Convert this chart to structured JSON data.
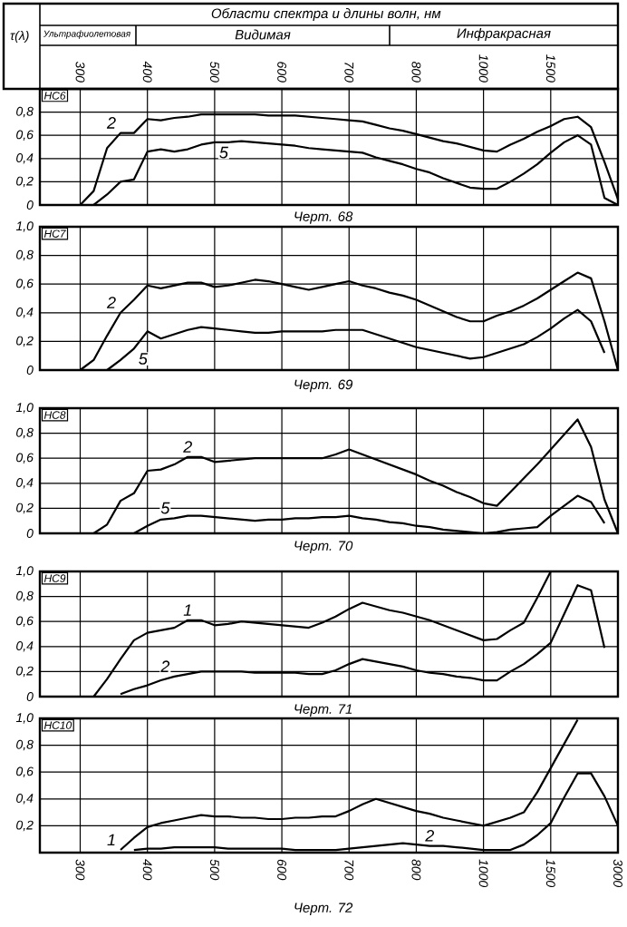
{
  "chart_data": [
    {
      "type": "line",
      "title": "НС6",
      "ylabel": "τ(λ)",
      "x2label": "Области спектра и длины волн, нм",
      "annotations": [
        "Ультрафиолетовая",
        "Видимая",
        "Инфракрасная",
        "Черт. 68"
      ],
      "categories": [
        null,
        null,
        null,
        "300",
        null,
        null,
        null,
        null,
        "400",
        null,
        null,
        null,
        null,
        "500",
        null,
        null,
        null,
        null,
        "600",
        null,
        null,
        null,
        null,
        "700",
        null,
        null,
        null,
        null,
        "800",
        null,
        null,
        null,
        null,
        "1000",
        null,
        null,
        null,
        null,
        "1500",
        null,
        null,
        null,
        null,
        null
      ],
      "ylim": [
        0,
        1
      ],
      "yticks": [
        {
          "value": 0,
          "label": "0"
        },
        {
          "value": 0.2,
          "label": "0,2"
        },
        {
          "value": 0.4,
          "label": "0,4"
        },
        {
          "value": 0.6,
          "label": "0,6"
        },
        {
          "value": 0.8,
          "label": "0,8"
        }
      ],
      "grid": true,
      "series": [
        {
          "name": "2",
          "color": "#000000",
          "values": [
            null,
            null,
            null,
            0,
            0.12,
            0.49,
            0.62,
            0.62,
            0.74,
            0.73,
            0.75,
            0.76,
            0.78,
            0.78,
            0.78,
            0.78,
            0.78,
            0.77,
            0.77,
            0.77,
            0.76,
            0.75,
            0.74,
            0.73,
            0.72,
            0.69,
            0.66,
            0.64,
            0.61,
            0.58,
            0.55,
            0.53,
            0.5,
            0.47,
            0.46,
            0.52,
            0.57,
            0.63,
            0.68,
            0.74,
            0.76,
            0.67,
            0.37,
            0.05
          ]
        },
        {
          "name": "5",
          "color": "#000000",
          "values": [
            null,
            null,
            null,
            null,
            0,
            0.09,
            0.2,
            0.22,
            0.46,
            0.48,
            0.46,
            0.48,
            0.52,
            0.54,
            0.54,
            0.55,
            0.54,
            0.53,
            0.52,
            0.51,
            0.49,
            0.48,
            0.47,
            0.46,
            0.45,
            0.41,
            0.38,
            0.35,
            0.31,
            0.28,
            0.23,
            0.19,
            0.15,
            0.14,
            0.14,
            0.2,
            0.27,
            0.35,
            0.45,
            0.54,
            0.6,
            0.52,
            0.06,
            0
          ]
        }
      ]
    },
    {
      "type": "line",
      "title": "НС7",
      "annotations": [
        "Черт. 69"
      ],
      "categories": [
        null,
        null,
        null,
        "300",
        null,
        null,
        null,
        null,
        "400",
        null,
        null,
        null,
        null,
        "500",
        null,
        null,
        null,
        null,
        "600",
        null,
        null,
        null,
        null,
        "700",
        null,
        null,
        null,
        null,
        "800",
        null,
        null,
        null,
        null,
        "1000",
        null,
        null,
        null,
        null,
        "1500",
        null,
        null,
        null,
        null,
        "3000"
      ],
      "ylim": [
        0,
        1
      ],
      "yticks": [
        {
          "value": 0,
          "label": "0"
        },
        {
          "value": 0.2,
          "label": "0,2"
        },
        {
          "value": 0.4,
          "label": "0,4"
        },
        {
          "value": 0.6,
          "label": "0,6"
        },
        {
          "value": 0.8,
          "label": "0,8"
        },
        {
          "value": 1,
          "label": "1,0"
        }
      ],
      "grid": true,
      "tick_labels": "y",
      "series": [
        {
          "name": "2",
          "color": "#000000",
          "values": [
            null,
            null,
            null,
            0,
            0.07,
            0.24,
            0.4,
            0.49,
            0.59,
            0.57,
            0.59,
            0.61,
            0.61,
            0.58,
            0.59,
            0.61,
            0.63,
            0.62,
            0.6,
            0.58,
            0.56,
            0.58,
            0.6,
            0.62,
            0.59,
            0.57,
            0.54,
            0.52,
            0.49,
            0.45,
            0.41,
            0.37,
            0.34,
            0.34,
            0.38,
            0.41,
            0.45,
            0.5,
            0.56,
            0.62,
            0.68,
            0.64,
            0.34,
            0
          ]
        },
        {
          "name": "5",
          "color": "#000000",
          "values": [
            null,
            null,
            null,
            null,
            null,
            0,
            0.07,
            0.15,
            0.27,
            0.22,
            0.25,
            0.28,
            0.3,
            0.29,
            0.28,
            0.27,
            0.26,
            0.26,
            0.27,
            0.27,
            0.27,
            0.27,
            0.28,
            0.28,
            0.28,
            0.25,
            0.22,
            0.19,
            0.16,
            0.14,
            0.12,
            0.1,
            0.08,
            0.09,
            0.12,
            0.15,
            0.18,
            0.23,
            0.29,
            0.36,
            0.42,
            0.34,
            0.12,
            null
          ]
        }
      ]
    },
    {
      "type": "line",
      "title": "НС8",
      "annotations": [
        "Черт. 70"
      ],
      "categories": [
        null,
        null,
        null,
        "300",
        null,
        null,
        null,
        null,
        "400",
        null,
        null,
        null,
        null,
        "500",
        null,
        null,
        null,
        null,
        "600",
        null,
        null,
        null,
        null,
        "700",
        null,
        null,
        null,
        null,
        "800",
        null,
        null,
        null,
        null,
        "1000",
        null,
        null,
        null,
        null,
        "1500",
        null,
        null,
        null,
        null,
        "3000"
      ],
      "ylim": [
        0,
        1
      ],
      "yticks": [
        {
          "value": 0,
          "label": "0"
        },
        {
          "value": 0.2,
          "label": "0,2"
        },
        {
          "value": 0.4,
          "label": "0,4"
        },
        {
          "value": 0.6,
          "label": "0,6"
        },
        {
          "value": 0.8,
          "label": "0,8"
        },
        {
          "value": 1,
          "label": "1,0"
        }
      ],
      "grid": true,
      "tick_labels": "y",
      "series": [
        {
          "name": "2",
          "color": "#000000",
          "values": [
            null,
            null,
            null,
            null,
            0,
            0.07,
            0.26,
            0.32,
            0.5,
            0.51,
            0.55,
            0.61,
            0.61,
            0.57,
            0.58,
            0.59,
            0.6,
            0.6,
            0.6,
            0.6,
            0.6,
            0.6,
            0.63,
            0.67,
            0.63,
            0.59,
            0.55,
            0.51,
            0.47,
            0.42,
            0.38,
            0.33,
            0.29,
            0.24,
            0.22,
            0.33,
            0.44,
            0.55,
            0.67,
            0.79,
            0.91,
            0.69,
            0.27,
            0
          ]
        },
        {
          "name": "5",
          "color": "#000000",
          "values": [
            null,
            null,
            null,
            null,
            null,
            null,
            null,
            0,
            0.06,
            0.11,
            0.12,
            0.14,
            0.14,
            0.13,
            0.12,
            0.11,
            0.1,
            0.11,
            0.11,
            0.12,
            0.12,
            0.13,
            0.13,
            0.14,
            0.12,
            0.11,
            0.09,
            0.08,
            0.06,
            0.05,
            0.03,
            0.02,
            0.01,
            0,
            0.01,
            0.03,
            0.04,
            0.05,
            0.14,
            0.22,
            0.3,
            0.25,
            0.08,
            null
          ]
        }
      ]
    },
    {
      "type": "line",
      "title": "НС9",
      "annotations": [
        "Черт. 71"
      ],
      "categories": [
        null,
        null,
        null,
        "300",
        null,
        null,
        null,
        null,
        "400",
        null,
        null,
        null,
        null,
        "500",
        null,
        null,
        null,
        null,
        "600",
        null,
        null,
        null,
        null,
        "700",
        null,
        null,
        null,
        null,
        "800",
        null,
        null,
        null,
        null,
        "1000",
        null,
        null,
        null,
        null,
        "1500",
        null,
        null,
        null,
        null,
        "3000"
      ],
      "ylim": [
        0,
        1
      ],
      "yticks": [
        {
          "value": 0,
          "label": "0"
        },
        {
          "value": 0.2,
          "label": "0,2"
        },
        {
          "value": 0.4,
          "label": "0,4"
        },
        {
          "value": 0.6,
          "label": "0,6"
        },
        {
          "value": 0.8,
          "label": "0,8"
        },
        {
          "value": 1,
          "label": "1,0"
        }
      ],
      "grid": true,
      "tick_labels": "y",
      "series": [
        {
          "name": "1",
          "color": "#000000",
          "values": [
            null,
            null,
            null,
            null,
            0,
            0.14,
            0.3,
            0.45,
            0.51,
            0.53,
            0.55,
            0.61,
            0.61,
            0.57,
            0.58,
            0.6,
            0.59,
            0.58,
            0.57,
            0.56,
            0.55,
            0.59,
            0.64,
            0.7,
            0.75,
            0.72,
            0.69,
            0.67,
            0.64,
            0.61,
            0.57,
            0.53,
            0.49,
            0.45,
            0.46,
            0.53,
            0.59,
            0.79,
            1,
            null,
            null,
            null,
            null,
            null
          ]
        },
        {
          "name": "2",
          "color": "#000000",
          "values": [
            null,
            null,
            null,
            null,
            null,
            null,
            0.02,
            0.06,
            0.09,
            0.13,
            0.16,
            0.18,
            0.2,
            0.2,
            0.2,
            0.2,
            0.19,
            0.19,
            0.19,
            0.19,
            0.18,
            0.18,
            0.21,
            0.26,
            0.3,
            0.28,
            0.26,
            0.24,
            0.21,
            0.19,
            0.18,
            0.16,
            0.15,
            0.13,
            0.13,
            0.2,
            0.26,
            0.34,
            0.43,
            0.66,
            0.89,
            0.85,
            0.39,
            null
          ]
        }
      ]
    },
    {
      "type": "line",
      "title": "НС10",
      "annotations": [
        "Черт. 72"
      ],
      "categories": [
        null,
        null,
        null,
        "300",
        null,
        null,
        null,
        null,
        "400",
        null,
        null,
        null,
        null,
        "500",
        null,
        null,
        null,
        null,
        "600",
        null,
        null,
        null,
        null,
        "700",
        null,
        null,
        null,
        null,
        "800",
        null,
        null,
        null,
        null,
        "1000",
        null,
        null,
        null,
        null,
        "1500",
        null,
        null,
        null,
        null,
        "3000"
      ],
      "ylim": [
        0,
        1
      ],
      "yticks": [
        {
          "value": 0.2,
          "label": "0,2"
        },
        {
          "value": 0.4,
          "label": "0,4"
        },
        {
          "value": 0.6,
          "label": "0,6"
        },
        {
          "value": 0.8,
          "label": "0,8"
        },
        {
          "value": 1,
          "label": "1,0"
        }
      ],
      "grid": true,
      "series": [
        {
          "name": "1",
          "color": "#000000",
          "values": [
            null,
            null,
            null,
            null,
            null,
            null,
            0.02,
            0.11,
            0.19,
            0.22,
            0.24,
            0.26,
            0.28,
            0.27,
            0.27,
            0.26,
            0.26,
            0.25,
            0.25,
            0.26,
            0.26,
            0.27,
            0.27,
            0.31,
            0.36,
            0.4,
            0.37,
            0.34,
            0.31,
            0.29,
            0.26,
            0.24,
            0.22,
            0.2,
            0.23,
            0.26,
            0.3,
            0.45,
            0.63,
            0.81,
            0.99,
            null,
            null,
            null
          ]
        },
        {
          "name": "2",
          "color": "#000000",
          "values": [
            null,
            null,
            null,
            null,
            null,
            null,
            null,
            0.02,
            0.03,
            0.03,
            0.04,
            0.04,
            0.04,
            0.04,
            0.03,
            0.03,
            0.03,
            0.03,
            0.03,
            0.02,
            0.02,
            0.02,
            0.02,
            0.03,
            0.04,
            0.05,
            0.06,
            0.07,
            0.06,
            0.05,
            0.05,
            0.04,
            0.03,
            0.02,
            0.02,
            0.02,
            0.06,
            0.13,
            0.22,
            0.41,
            0.59,
            0.59,
            0.42,
            0.2
          ]
        }
      ]
    }
  ]
}
